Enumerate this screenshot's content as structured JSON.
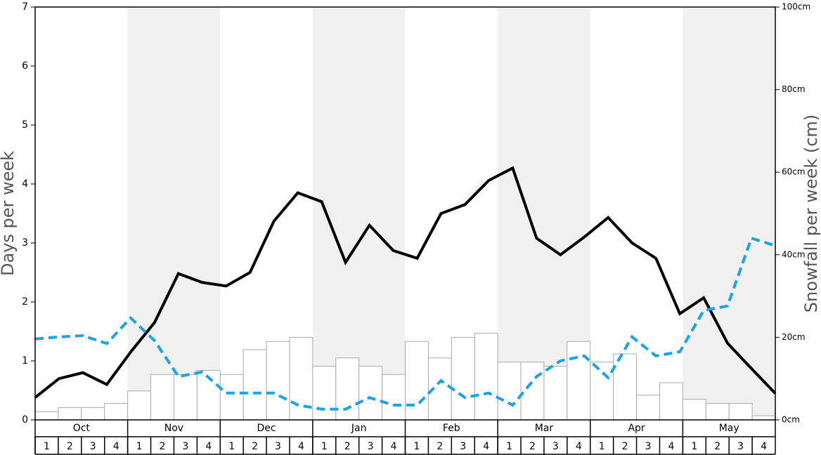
{
  "chart_data": {
    "type": "bar-line",
    "y_label": "Days per week",
    "y2_label": "Snowfall per week (cm)",
    "months": [
      "Oct",
      "Nov",
      "Dec",
      "Jan",
      "Feb",
      "Mar",
      "Apr",
      "May"
    ],
    "categories": [
      "1",
      "2",
      "3",
      "4",
      "1",
      "2",
      "3",
      "4",
      "1",
      "2",
      "3",
      "4",
      "1",
      "2",
      "3",
      "4",
      "1",
      "2",
      "3",
      "4",
      "1",
      "2",
      "3",
      "4",
      "1",
      "2",
      "3",
      "4",
      "1",
      "2",
      "3",
      "4"
    ],
    "ylim": [
      0,
      7
    ],
    "yticks": [
      0,
      1,
      2,
      3,
      4,
      5,
      6,
      7
    ],
    "y2lim": [
      0,
      100
    ],
    "y2ticks": [
      {
        "value": 0,
        "label": "0cm"
      },
      {
        "value": 20,
        "label": "20cm"
      },
      {
        "value": 40,
        "label": "40cm"
      },
      {
        "value": 60,
        "label": "60cm"
      },
      {
        "value": 80,
        "label": "80cm"
      },
      {
        "value": 100,
        "label": "100cm"
      }
    ],
    "bars": {
      "axis": "y2",
      "color": "#ffffff",
      "values": [
        2,
        3,
        3,
        4,
        7,
        11,
        11,
        12,
        11,
        17,
        19,
        20,
        13,
        15,
        13,
        11,
        19,
        15,
        20,
        21,
        14,
        14,
        13,
        19,
        14,
        16,
        6,
        9,
        5,
        4,
        4,
        1
      ]
    },
    "series": [
      {
        "color": "#000000",
        "dashed": false,
        "values": [
          0.38,
          0.7,
          0.8,
          0.6,
          1.15,
          1.65,
          2.48,
          2.33,
          2.27,
          2.5,
          3.37,
          3.85,
          3.7,
          2.67,
          3.3,
          2.87,
          2.74,
          3.5,
          3.65,
          4.06,
          4.27,
          3.08,
          2.8,
          3.1,
          3.43,
          3.0,
          2.74,
          1.8,
          2.07,
          1.3,
          0.87,
          0.45
        ]
      },
      {
        "color": "#1aa3e8",
        "dashed": true,
        "axis": "y2",
        "values": [
          19.6,
          20.1,
          20.4,
          18.5,
          24.7,
          19.2,
          10.5,
          11.6,
          6.5,
          6.5,
          6.5,
          3.6,
          2.6,
          2.6,
          5.4,
          3.6,
          3.6,
          9.5,
          5.4,
          6.5,
          3.6,
          10.5,
          14.3,
          15.5,
          10.2,
          20.1,
          15.5,
          16.5,
          26.5,
          27.6,
          44,
          42.2
        ]
      }
    ]
  }
}
